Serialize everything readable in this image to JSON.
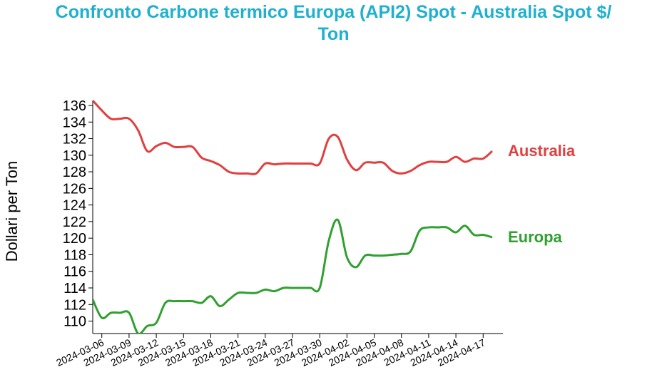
{
  "title_line1": "Confronto Carbone termico Europa (API2) Spot - Australia Spot $/",
  "title_line2": "Ton",
  "chart_data": {
    "type": "line",
    "title": "Confronto Carbone termico Europa (API2) Spot - Australia Spot $/Ton",
    "ylabel": "Dollari per Ton",
    "xlabel": "",
    "ylim": [
      108.5,
      136.6
    ],
    "grid": false,
    "legend": "inline labels at right end of each line",
    "x_ticks": [
      "2024-03-06",
      "2024-03-09",
      "2024-03-12",
      "2024-03-15",
      "2024-03-18",
      "2024-03-21",
      "2024-03-24",
      "2024-03-27",
      "2024-03-30",
      "2024-04-02",
      "2024-04-05",
      "2024-04-08",
      "2024-04-11",
      "2024-04-14",
      "2024-04-17"
    ],
    "y_ticks": [
      110,
      112,
      114,
      116,
      118,
      120,
      122,
      124,
      126,
      128,
      130,
      132,
      134,
      136
    ],
    "x": [
      "2024-03-05",
      "2024-03-06",
      "2024-03-07",
      "2024-03-08",
      "2024-03-09",
      "2024-03-10",
      "2024-03-11",
      "2024-03-12",
      "2024-03-13",
      "2024-03-14",
      "2024-03-15",
      "2024-03-16",
      "2024-03-17",
      "2024-03-18",
      "2024-03-19",
      "2024-03-20",
      "2024-03-21",
      "2024-03-22",
      "2024-03-23",
      "2024-03-24",
      "2024-03-25",
      "2024-03-26",
      "2024-03-27",
      "2024-03-28",
      "2024-03-29",
      "2024-03-30",
      "2024-03-31",
      "2024-04-01",
      "2024-04-02",
      "2024-04-03",
      "2024-04-04",
      "2024-04-05",
      "2024-04-06",
      "2024-04-07",
      "2024-04-08",
      "2024-04-09",
      "2024-04-10",
      "2024-04-11",
      "2024-04-12",
      "2024-04-13",
      "2024-04-14",
      "2024-04-15",
      "2024-04-16",
      "2024-04-17",
      "2024-04-18"
    ],
    "series": [
      {
        "name": "Australia",
        "color": "#e04040",
        "values": [
          136.6,
          135.4,
          134.4,
          134.4,
          134.4,
          133.0,
          130.5,
          131.1,
          131.5,
          131.0,
          131.0,
          131.0,
          129.7,
          129.3,
          128.8,
          128.0,
          127.8,
          127.8,
          127.8,
          129.0,
          128.9,
          129.0,
          129.0,
          129.0,
          129.0,
          129.0,
          132.0,
          132.2,
          129.5,
          128.2,
          129.1,
          129.1,
          129.1,
          128.1,
          127.8,
          128.1,
          128.8,
          129.2,
          129.2,
          129.2,
          129.8,
          129.2,
          129.6,
          129.6,
          130.5
        ]
      },
      {
        "name": "Europa",
        "color": "#30a030",
        "values": [
          112.6,
          110.4,
          111.0,
          111.0,
          111.0,
          108.5,
          109.4,
          109.8,
          112.2,
          112.4,
          112.4,
          112.4,
          112.2,
          113.0,
          111.8,
          112.6,
          113.4,
          113.4,
          113.4,
          113.8,
          113.6,
          114.0,
          114.0,
          114.0,
          114.0,
          114.0,
          119.7,
          122.2,
          117.7,
          116.5,
          117.9,
          117.9,
          117.9,
          118.0,
          118.1,
          118.4,
          120.9,
          121.3,
          121.3,
          121.3,
          120.7,
          121.5,
          120.4,
          120.4,
          120.1
        ]
      }
    ]
  }
}
